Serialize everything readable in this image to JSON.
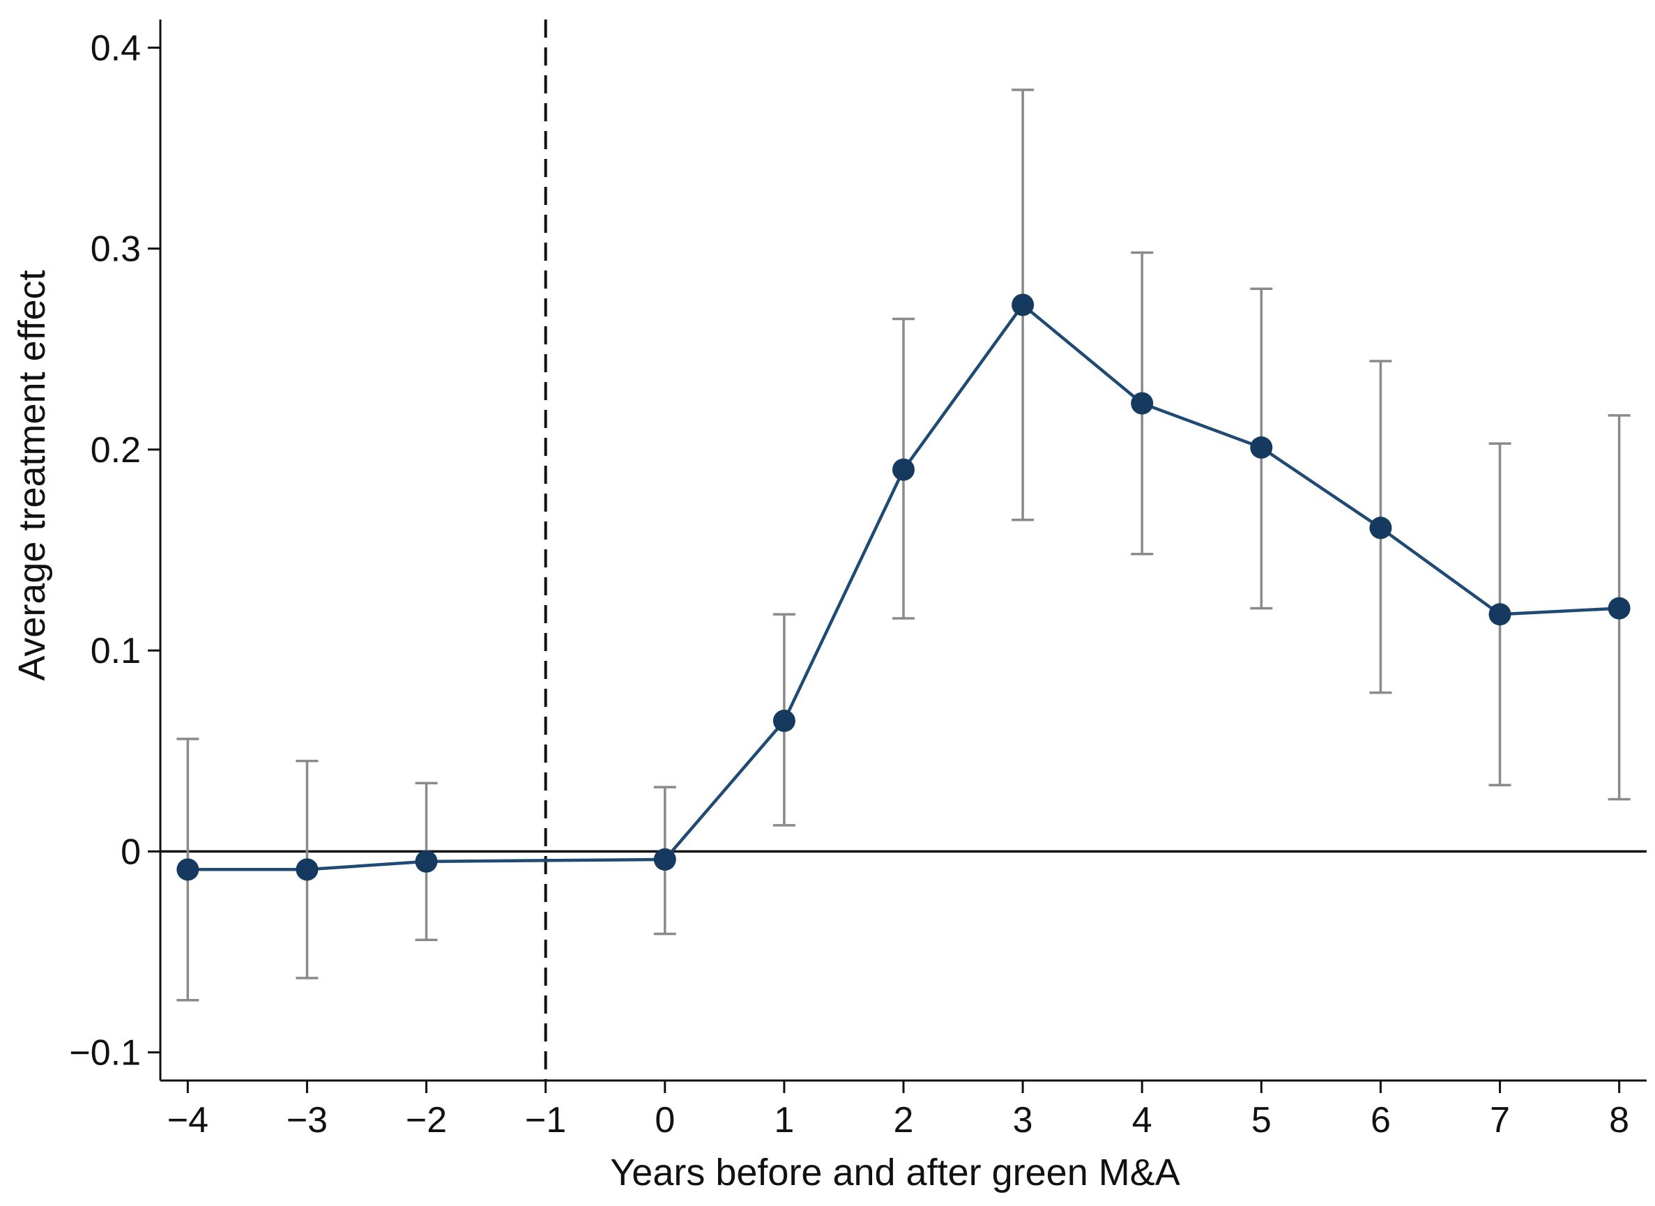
{
  "chart_data": {
    "type": "line",
    "title": "",
    "xlabel": "Years before and after green M&A",
    "ylabel": "Average treatment effect",
    "xlim": [
      -4.23,
      8.23
    ],
    "ylim": [
      -0.114,
      0.414
    ],
    "x_ticks": [
      -4,
      -3,
      -2,
      -1,
      0,
      1,
      2,
      3,
      4,
      5,
      6,
      7,
      8
    ],
    "x_tick_labels": [
      "−4",
      "−3",
      "−2",
      "−1",
      "0",
      "1",
      "2",
      "3",
      "4",
      "5",
      "6",
      "7",
      "8"
    ],
    "y_ticks": [
      -0.1,
      0,
      0.1,
      0.2,
      0.3,
      0.4
    ],
    "y_tick_labels": [
      "−0.1",
      "0",
      "0.1",
      "0.2",
      "0.3",
      "0.4"
    ],
    "reference_vline_x": -1,
    "reference_hline_y": 0,
    "grid": false,
    "legend": "none",
    "series": [
      {
        "name": "Average treatment effect",
        "color": "#1f4a73",
        "x": [
          -4,
          -3,
          -2,
          0,
          1,
          2,
          3,
          4,
          5,
          6,
          7,
          8
        ],
        "values": [
          -0.009,
          -0.009,
          -0.005,
          -0.004,
          0.065,
          0.19,
          0.272,
          0.223,
          0.201,
          0.161,
          0.118,
          0.121
        ],
        "ci_lower": [
          -0.074,
          -0.063,
          -0.044,
          -0.041,
          0.013,
          0.116,
          0.165,
          0.148,
          0.121,
          0.079,
          0.033,
          0.026
        ],
        "ci_upper": [
          0.056,
          0.045,
          0.034,
          0.032,
          0.118,
          0.265,
          0.379,
          0.298,
          0.28,
          0.244,
          0.203,
          0.217
        ]
      }
    ],
    "colors": {
      "line": "#1f4a73",
      "marker": "#163a5f",
      "errorbar": "#8a8a8a",
      "axis": "#111111"
    }
  }
}
